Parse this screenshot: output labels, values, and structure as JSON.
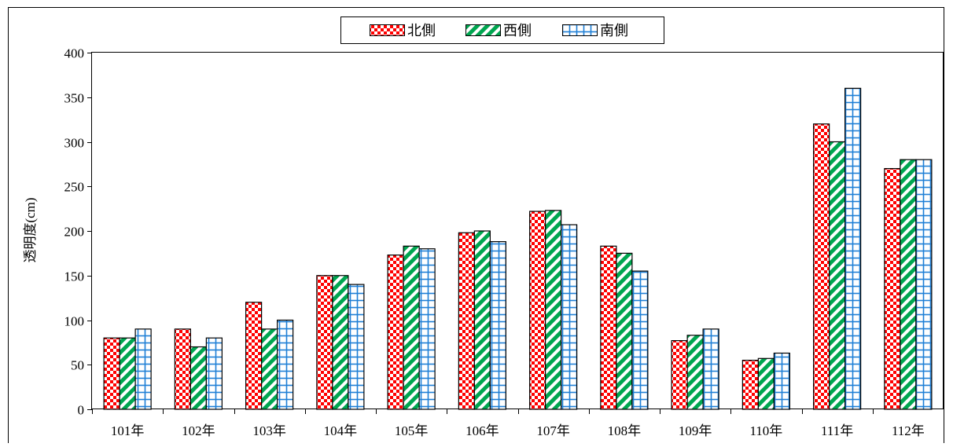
{
  "chart_data": {
    "type": "bar",
    "ylabel": "透明度(cm)",
    "ylim": [
      0,
      400
    ],
    "yticks": [
      0,
      50,
      100,
      150,
      200,
      250,
      300,
      350,
      400
    ],
    "categories": [
      "101年",
      "102年",
      "103年",
      "104年",
      "105年",
      "106年",
      "107年",
      "108年",
      "109年",
      "110年",
      "111年",
      "112年"
    ],
    "series": [
      {
        "name": "北側",
        "pattern": "checker",
        "color": "#ff0000",
        "values": [
          80,
          90,
          120,
          150,
          173,
          198,
          222,
          183,
          77,
          55,
          320,
          270
        ]
      },
      {
        "name": "西側",
        "pattern": "diagonal",
        "color": "#00a650",
        "values": [
          80,
          70,
          90,
          150,
          183,
          200,
          223,
          175,
          83,
          57,
          300,
          280
        ]
      },
      {
        "name": "南側",
        "pattern": "grid",
        "color": "#1e7fd6",
        "values": [
          90,
          80,
          100,
          140,
          180,
          188,
          207,
          155,
          90,
          63,
          360,
          280
        ]
      }
    ],
    "legend": "top-center",
    "grid": false
  }
}
